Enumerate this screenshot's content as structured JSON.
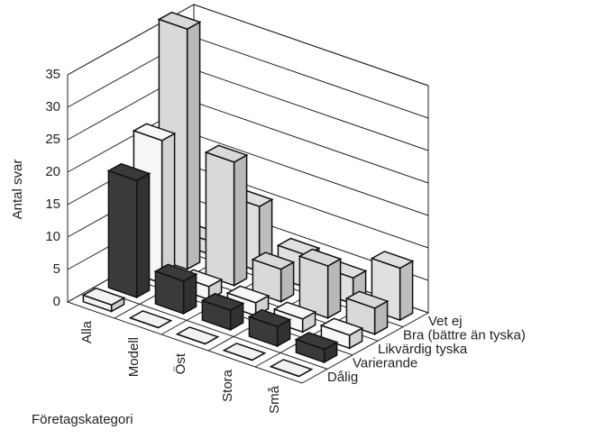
{
  "chart_data": {
    "type": "bar3d",
    "x_label": "Företagskategori",
    "y_label": "Antal svar",
    "categories": [
      "Alla",
      "Modell",
      "Öst",
      "Stora",
      "Små"
    ],
    "series": [
      {
        "name": "Dålig",
        "color": "#f2f2f2",
        "values": [
          1,
          0,
          0,
          0,
          0
        ]
      },
      {
        "name": "Varierande",
        "color": "#3a3a3a",
        "values": [
          18,
          5,
          3,
          3,
          2
        ]
      },
      {
        "name": "Likvärdig tyska",
        "color": "#f7f7f7",
        "values": [
          22,
          2,
          2,
          2,
          2
        ]
      },
      {
        "name": "Bra (bättre än tyska)",
        "color": "#d9d9d9",
        "values": [
          37,
          19,
          5,
          8,
          4
        ]
      },
      {
        "name": "Vet ej",
        "color": "#e0e0e0",
        "values": [
          2,
          10,
          5,
          4,
          8
        ]
      }
    ],
    "ylim": [
      0,
      35
    ],
    "yticks": [
      0,
      5,
      10,
      15,
      20,
      25,
      30,
      35
    ],
    "grid": true
  }
}
